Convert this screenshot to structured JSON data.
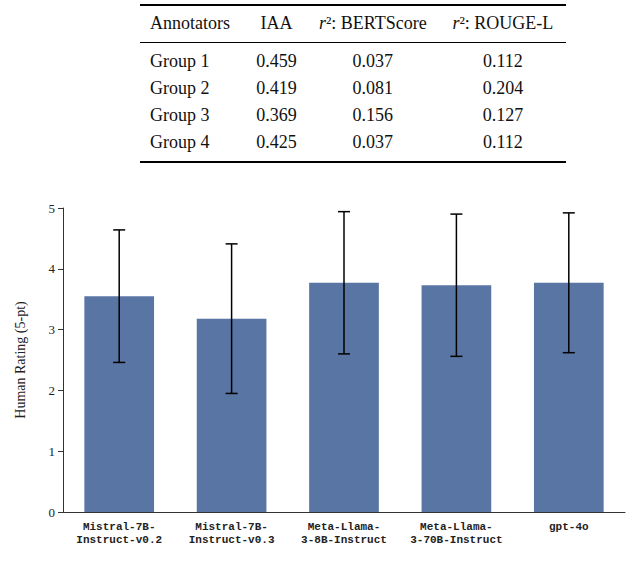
{
  "table": {
    "header": [
      "Annotators",
      "IAA",
      "r²: BERTScore",
      "r²: ROUGE-L"
    ],
    "rows": [
      [
        "Group 1",
        "0.459",
        "0.037",
        "0.112"
      ],
      [
        "Group 2",
        "0.419",
        "0.081",
        "0.204"
      ],
      [
        "Group 3",
        "0.369",
        "0.156",
        "0.127"
      ],
      [
        "Group 4",
        "0.425",
        "0.037",
        "0.112"
      ]
    ]
  },
  "chart_data": {
    "type": "bar",
    "y_label": "Human Rating (5-pt)",
    "categories": [
      "Mistral-7B-\nInstruct-v0.2",
      "Mistral-7B-\nInstruct-v0.3",
      "Meta-Llama-\n3-8B-Instruct",
      "Meta-Llama-\n3-70B-Instruct",
      "gpt-4o"
    ],
    "values": [
      3.55,
      3.18,
      3.77,
      3.73,
      3.77
    ],
    "error": [
      1.09,
      1.23,
      1.17,
      1.17,
      1.15
    ],
    "color": "#5975a4",
    "ylim": [
      0,
      5
    ],
    "yticks": [
      0,
      1,
      2,
      3,
      4,
      5
    ],
    "grid": false
  }
}
